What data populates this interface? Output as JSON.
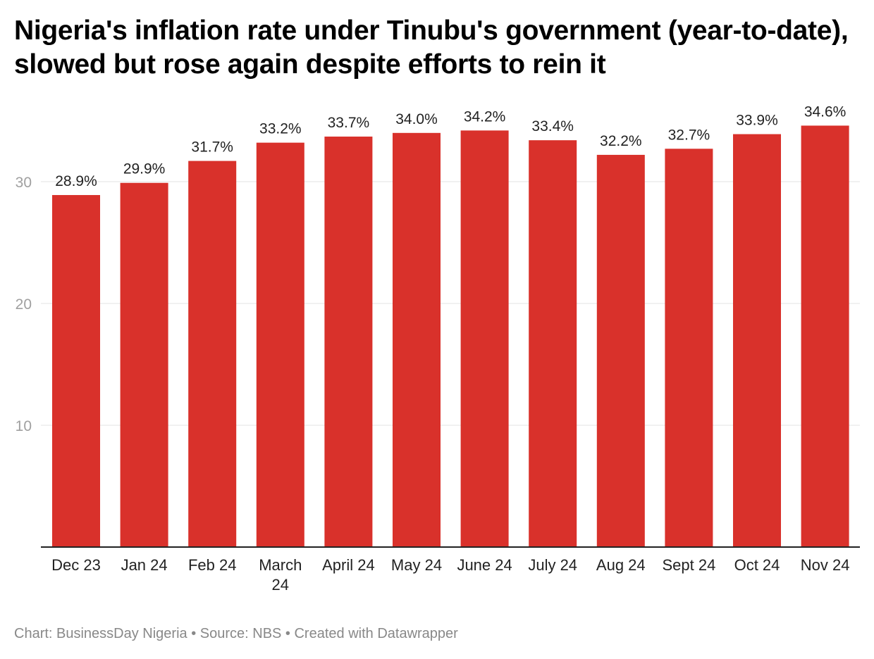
{
  "chart_data": {
    "type": "bar",
    "title": "Nigeria's inflation rate under Tinubu's government (year-to-date), slowed but rose again despite efforts to rein it",
    "categories": [
      "Dec 23",
      "Jan 24",
      "Feb 24",
      "March 24",
      "April 24",
      "May 24",
      "June 24",
      "July 24",
      "Aug 24",
      "Sept 24",
      "Oct 24",
      "Nov 24"
    ],
    "values": [
      28.9,
      29.9,
      31.7,
      33.2,
      33.7,
      34.0,
      34.2,
      33.4,
      32.2,
      32.7,
      33.9,
      34.6
    ],
    "data_labels": [
      "28.9%",
      "29.9%",
      "31.7%",
      "33.2%",
      "33.7%",
      "34.0%",
      "34.2%",
      "33.4%",
      "32.2%",
      "32.7%",
      "33.9%",
      "34.6%"
    ],
    "xlabel": "",
    "ylabel": "",
    "ylim": [
      0,
      35
    ],
    "yticks": [
      10,
      20,
      30
    ],
    "grid": true,
    "bar_color": "#d9312b"
  },
  "footer": "Chart: BusinessDay Nigeria • Source: NBS • Created with Datawrapper"
}
